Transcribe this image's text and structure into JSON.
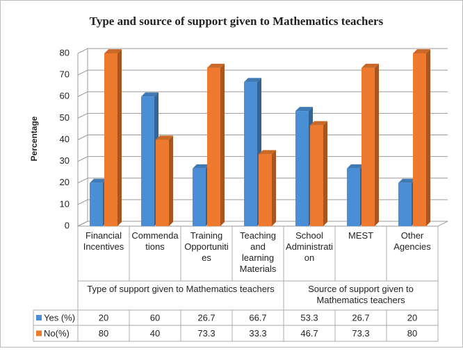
{
  "chart_data": {
    "type": "bar3d",
    "title": "Type and source of support given to Mathematics teachers",
    "y_label": "Percentage",
    "categories": [
      "Financial Incentives",
      "Commendations",
      "Training Opportunities",
      "Teaching and learning Materials",
      "School Administration",
      "MEST",
      "Other Agencies"
    ],
    "groups": [
      "Type of support given to Mathematics teachers",
      "Source of support given to Mathematics teachers"
    ],
    "series": [
      {
        "name": "Yes (%)",
        "color": "#4a8fd6",
        "values": [
          20,
          60,
          26.7,
          66.7,
          53.3,
          26.7,
          20
        ]
      },
      {
        "name": "No(%)",
        "color": "#ee7a2f",
        "values": [
          80,
          40,
          73.3,
          33.3,
          46.7,
          73.3,
          80
        ]
      }
    ],
    "ylim": [
      0,
      80
    ],
    "yticks": [
      0,
      10,
      20,
      30,
      40,
      50,
      60,
      70,
      80
    ],
    "grid": true
  }
}
